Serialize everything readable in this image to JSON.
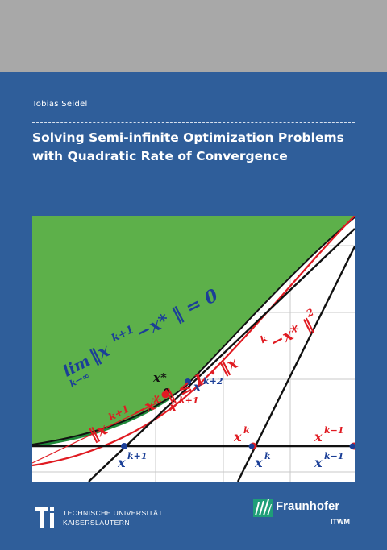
{
  "author": "Tobias Seidel",
  "title_line1": "Solving Semi-infinite Optimization Problems",
  "title_line2": "with Quadratic Rate of Convergence",
  "figure": {
    "formula_limit_lhs": "lim",
    "formula_limit_sub": "k→∞",
    "formula_limit_norm": "‖x",
    "formula_limit_sup": "k+1",
    "formula_limit_rest": "−x* ‖ = 0",
    "formula_rate": "‖x",
    "formula_rate_sup": "k+1",
    "formula_rate_mid": "−x* ‖ ≤ L · ‖x",
    "formula_rate_sup2": "k",
    "formula_rate_end": "−x* ‖",
    "formula_rate_pow": "2",
    "label_xstar": "x*",
    "label_xk2": "x",
    "label_xk2_sup": "k+2",
    "label_xk1_red": "x",
    "label_xk1_red_sup": "k+1",
    "label_xk_red": "x",
    "label_xk_red_sup": "k",
    "label_xkm1_red": "x",
    "label_xkm1_red_sup": "k−1",
    "label_xk1_blue": "x",
    "label_xk1_blue_sup": "k+1",
    "label_xk_blue": "x",
    "label_xk_blue_sup": "k",
    "label_xkm1_blue": "x",
    "label_xkm1_blue_sup": "k−1"
  },
  "colors": {
    "top_band": "#a8a8a8",
    "cover": "#2f5e9a",
    "green_region": "#5db04a",
    "dark_green": "#1f8a3a",
    "red": "#e01b22",
    "blue": "#1b3f97"
  },
  "logo_tu_line1": "TECHNISCHE UNIVERSITÄT",
  "logo_tu_line2": "KAISERSLAUTERN",
  "logo_fh_name": "Fraunhofer",
  "logo_fh_sub": "ITWM"
}
